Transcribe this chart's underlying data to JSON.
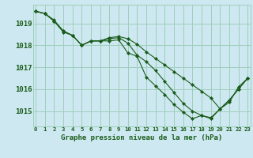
{
  "background_color": "#cde8f0",
  "grid_color": "#9ecfba",
  "line_color": "#1a5c1a",
  "marker_color": "#1a5c1a",
  "xlabel": "Graphe pression niveau de la mer (hPa)",
  "xlim": [
    -0.3,
    23.3
  ],
  "ylim": [
    1014.3,
    1019.85
  ],
  "yticks": [
    1015,
    1016,
    1017,
    1018,
    1019
  ],
  "xticks": [
    0,
    1,
    2,
    3,
    4,
    5,
    6,
    7,
    8,
    9,
    10,
    11,
    12,
    13,
    14,
    15,
    16,
    17,
    18,
    19,
    20,
    21,
    22,
    23
  ],
  "series1": [
    1019.55,
    1019.45,
    1019.1,
    1018.65,
    1018.45,
    1018.0,
    1018.2,
    1018.2,
    1018.3,
    1018.35,
    1018.1,
    1017.55,
    1017.25,
    1016.85,
    1016.35,
    1015.85,
    1015.35,
    1015.0,
    1014.8,
    1014.7,
    1015.1,
    1015.5,
    1016.0,
    1016.5
  ],
  "series2": [
    1019.55,
    1019.45,
    1019.1,
    1018.6,
    1018.45,
    1018.0,
    1018.2,
    1018.2,
    1018.2,
    1018.25,
    1017.65,
    1017.5,
    1016.55,
    1016.15,
    1015.75,
    1015.3,
    1014.95,
    1014.65,
    1014.8,
    1014.65,
    1015.1,
    1015.5,
    1016.0,
    1016.5
  ],
  "series3": [
    1019.55,
    1019.45,
    1019.15,
    1018.65,
    1018.45,
    1018.0,
    1018.2,
    1018.2,
    1018.35,
    1018.4,
    1018.3,
    1018.05,
    1017.7,
    1017.4,
    1017.1,
    1016.8,
    1016.5,
    1016.2,
    1015.9,
    1015.6,
    1015.1,
    1015.4,
    1016.1,
    1016.5
  ]
}
